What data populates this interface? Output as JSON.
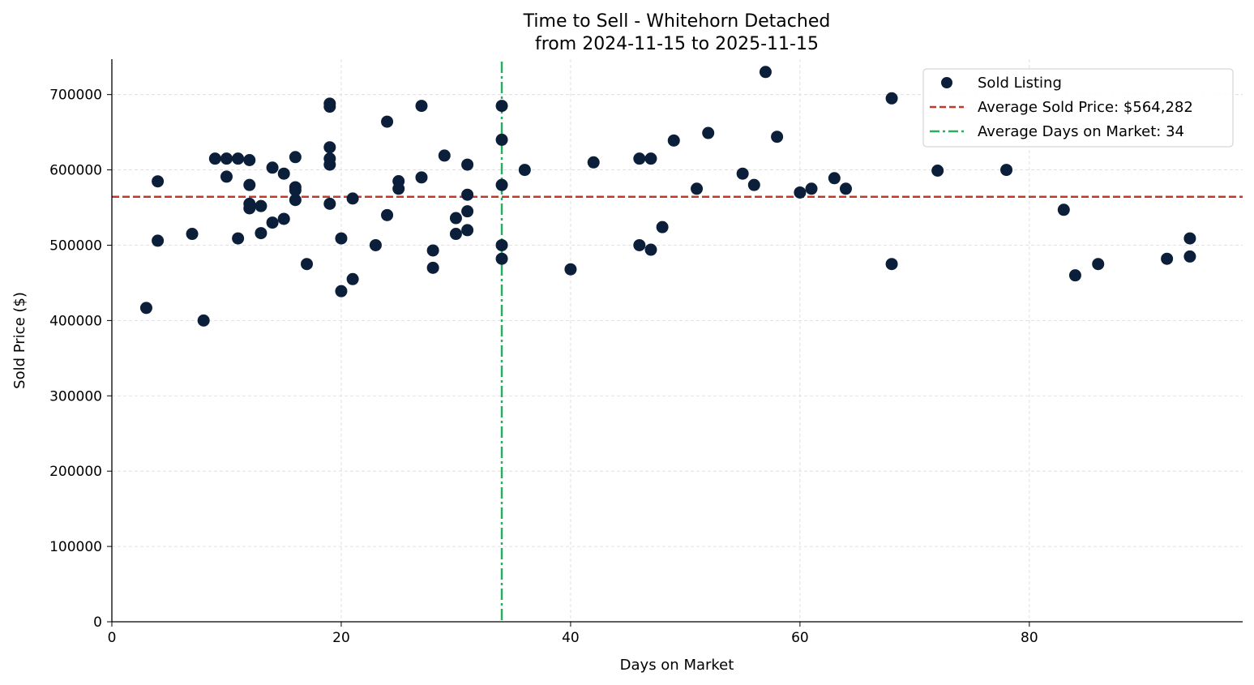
{
  "chart_data": {
    "type": "scatter",
    "title": "Time to Sell - Whitehorn Detached",
    "subtitle": "from 2024-11-15 to 2025-11-15",
    "xlabel": "Days on Market",
    "ylabel": "Sold Price ($)",
    "xlim": [
      0,
      98.6
    ],
    "ylim": [
      0,
      747000
    ],
    "xticks": [
      0,
      20,
      40,
      60,
      80
    ],
    "yticks": [
      0,
      100000,
      200000,
      300000,
      400000,
      500000,
      600000,
      700000
    ],
    "grid": true,
    "legend_position": "top-right",
    "colors": {
      "points": "#0b1f3a",
      "avg_price": "#c0392b",
      "avg_days": "#27ae60"
    },
    "series": [
      {
        "name": "Sold Listing",
        "points": [
          [
            3,
            416700
          ],
          [
            4,
            584800
          ],
          [
            4,
            506000
          ],
          [
            7,
            515000
          ],
          [
            8,
            400000
          ],
          [
            9,
            615000
          ],
          [
            10,
            615000
          ],
          [
            10,
            591000
          ],
          [
            11,
            615000
          ],
          [
            11,
            509000
          ],
          [
            12,
            613000
          ],
          [
            12,
            580000
          ],
          [
            12,
            555000
          ],
          [
            12,
            549000
          ],
          [
            13,
            552000
          ],
          [
            13,
            516000
          ],
          [
            14,
            603000
          ],
          [
            14,
            530000
          ],
          [
            15,
            595000
          ],
          [
            15,
            535000
          ],
          [
            16,
            617000
          ],
          [
            16,
            577000
          ],
          [
            16,
            573000
          ],
          [
            16,
            560000
          ],
          [
            17,
            475000
          ],
          [
            19,
            688000
          ],
          [
            19,
            684000
          ],
          [
            19,
            630000
          ],
          [
            19,
            615000
          ],
          [
            19,
            607000
          ],
          [
            19,
            555000
          ],
          [
            20,
            509000
          ],
          [
            20,
            439000
          ],
          [
            21,
            562000
          ],
          [
            21,
            455000
          ],
          [
            23,
            500000
          ],
          [
            24,
            664000
          ],
          [
            24,
            540000
          ],
          [
            25,
            585000
          ],
          [
            25,
            575000
          ],
          [
            27,
            685000
          ],
          [
            27,
            590000
          ],
          [
            28,
            493000
          ],
          [
            28,
            470000
          ],
          [
            29,
            619000
          ],
          [
            30,
            536000
          ],
          [
            30,
            515000
          ],
          [
            31,
            607000
          ],
          [
            31,
            567000
          ],
          [
            31,
            545000
          ],
          [
            31,
            520000
          ],
          [
            34,
            685000
          ],
          [
            34,
            640000
          ],
          [
            34,
            580000
          ],
          [
            34,
            500000
          ],
          [
            34,
            482000
          ],
          [
            36,
            600000
          ],
          [
            40,
            468000
          ],
          [
            42,
            610000
          ],
          [
            46,
            615000
          ],
          [
            46,
            500000
          ],
          [
            47,
            615000
          ],
          [
            47,
            494000
          ],
          [
            48,
            524000
          ],
          [
            49,
            639000
          ],
          [
            51,
            575000
          ],
          [
            52,
            649000
          ],
          [
            55,
            595000
          ],
          [
            56,
            580000
          ],
          [
            57,
            730000
          ],
          [
            58,
            644000
          ],
          [
            60,
            570000
          ],
          [
            61,
            575000
          ],
          [
            63,
            589000
          ],
          [
            64,
            575000
          ],
          [
            68,
            695000
          ],
          [
            68,
            475000
          ],
          [
            72,
            599000
          ],
          [
            78,
            600000
          ],
          [
            83,
            547000
          ],
          [
            84,
            460000
          ],
          [
            86,
            475000
          ],
          [
            92,
            482000
          ],
          [
            94,
            509000
          ],
          [
            94,
            485000
          ]
        ]
      }
    ],
    "reference_lines": {
      "avg_price": {
        "name": "Average Sold Price: $564,282",
        "value": 564282
      },
      "avg_days": {
        "name": "Average Days on Market: 34",
        "value": 34
      }
    }
  }
}
